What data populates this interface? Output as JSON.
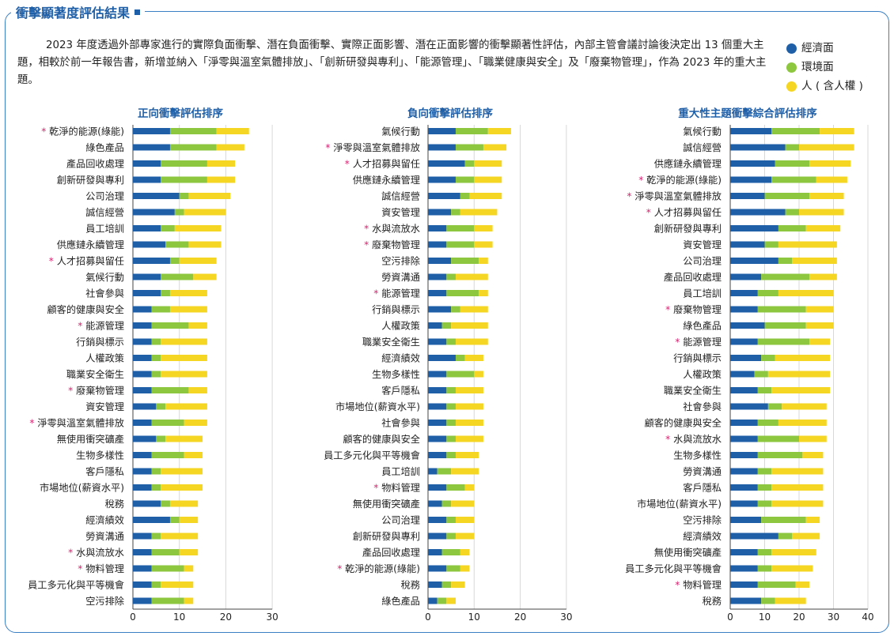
{
  "page": {
    "title": "衝擊顯著度評估結果",
    "intro": "2023 年度透過外部專家進行的實際負面衝擊、潛在負面衝擊、實際正面影響、潛在正面影響的衝擊顯著性評估，內部主管會議討論後決定出 13 個重大主題，相較於前一年報告書，新增並納入「淨零與溫室氣體排放」、「創新研發與專利」、「能源管理」、「職業健康與安全」及「廢棄物管理」，作為 2023 年的重大主題。",
    "legend": [
      {
        "label": "經濟面",
        "color": "#1f5fa8"
      },
      {
        "label": "環境面",
        "color": "#8dc63f"
      },
      {
        "label": "人 ( 含人權 )",
        "color": "#f5d623"
      }
    ],
    "marker": "*"
  },
  "chart_data": [
    {
      "type": "bar",
      "stacked": true,
      "orientation": "horizontal",
      "title": "正向衝擊評估排序",
      "xlim": [
        0,
        30
      ],
      "xticks": [
        0,
        10,
        20,
        30
      ],
      "series_names": [
        "經濟面",
        "環境面",
        "人 ( 含人權 )"
      ],
      "categories": [
        {
          "label": "乾淨的能源(綠能)",
          "star": true,
          "values": [
            8,
            10,
            7
          ]
        },
        {
          "label": "綠色產品",
          "star": false,
          "values": [
            8,
            10,
            6
          ]
        },
        {
          "label": "產品回收處理",
          "star": false,
          "values": [
            6,
            10,
            6
          ]
        },
        {
          "label": "創新研發與專利",
          "star": false,
          "values": [
            6,
            10,
            6
          ]
        },
        {
          "label": "公司治理",
          "star": false,
          "values": [
            10,
            2,
            9
          ]
        },
        {
          "label": "誠信經營",
          "star": false,
          "values": [
            9,
            2,
            9
          ]
        },
        {
          "label": "員工培訓",
          "star": false,
          "values": [
            6,
            3,
            10
          ]
        },
        {
          "label": "供應鏈永續管理",
          "star": false,
          "values": [
            7,
            5,
            7
          ]
        },
        {
          "label": "人才招募與留任",
          "star": true,
          "values": [
            8,
            2,
            8
          ]
        },
        {
          "label": "氣候行動",
          "star": false,
          "values": [
            6,
            7,
            5
          ]
        },
        {
          "label": "社會參與",
          "star": false,
          "values": [
            6,
            2,
            8
          ]
        },
        {
          "label": "顧客的健康與安全",
          "star": false,
          "values": [
            4,
            4,
            8
          ]
        },
        {
          "label": "能源管理",
          "star": true,
          "values": [
            4,
            8,
            4
          ]
        },
        {
          "label": "行銷與標示",
          "star": false,
          "values": [
            4,
            2,
            10
          ]
        },
        {
          "label": "人權政策",
          "star": false,
          "values": [
            4,
            2,
            10
          ]
        },
        {
          "label": "職業安全衛生",
          "star": false,
          "values": [
            4,
            2,
            10
          ]
        },
        {
          "label": "廢棄物管理",
          "star": true,
          "values": [
            4,
            8,
            4
          ]
        },
        {
          "label": "資安管理",
          "star": false,
          "values": [
            5,
            2,
            9
          ]
        },
        {
          "label": "淨零與溫室氣體排放",
          "star": true,
          "values": [
            4,
            7,
            5
          ]
        },
        {
          "label": "無使用衝突礦產",
          "star": false,
          "values": [
            5,
            2,
            8
          ]
        },
        {
          "label": "生物多樣性",
          "star": false,
          "values": [
            4,
            7,
            4
          ]
        },
        {
          "label": "客戶隱私",
          "star": false,
          "values": [
            4,
            2,
            9
          ]
        },
        {
          "label": "市場地位(薪資水平)",
          "star": false,
          "values": [
            4,
            2,
            9
          ]
        },
        {
          "label": "稅務",
          "star": false,
          "values": [
            6,
            2,
            6
          ]
        },
        {
          "label": "經濟績效",
          "star": false,
          "values": [
            8,
            2,
            4
          ]
        },
        {
          "label": "勞資溝通",
          "star": false,
          "values": [
            4,
            2,
            8
          ]
        },
        {
          "label": "水與流放水",
          "star": true,
          "values": [
            4,
            6,
            4
          ]
        },
        {
          "label": "物料管理",
          "star": true,
          "values": [
            4,
            7,
            2
          ]
        },
        {
          "label": "員工多元化與平等機會",
          "star": false,
          "values": [
            4,
            2,
            7
          ]
        },
        {
          "label": "空污排除",
          "star": false,
          "values": [
            4,
            7,
            2
          ]
        }
      ]
    },
    {
      "type": "bar",
      "stacked": true,
      "orientation": "horizontal",
      "title": "負向衝擊評估排序",
      "xlim": [
        0,
        30
      ],
      "xticks": [
        0,
        10,
        20,
        30
      ],
      "series_names": [
        "經濟面",
        "環境面",
        "人 ( 含人權 )"
      ],
      "categories": [
        {
          "label": "氣候行動",
          "star": false,
          "values": [
            6,
            7,
            5
          ]
        },
        {
          "label": "淨零與溫室氣體排放",
          "star": true,
          "values": [
            6,
            6,
            5
          ]
        },
        {
          "label": "人才招募與留任",
          "star": true,
          "values": [
            8,
            2,
            6
          ]
        },
        {
          "label": "供應鏈永續管理",
          "star": false,
          "values": [
            6,
            4,
            6
          ]
        },
        {
          "label": "誠信經營",
          "star": false,
          "values": [
            7,
            2,
            7
          ]
        },
        {
          "label": "資安管理",
          "star": false,
          "values": [
            5,
            2,
            8
          ]
        },
        {
          "label": "水與流放水",
          "star": true,
          "values": [
            4,
            6,
            4
          ]
        },
        {
          "label": "廢棄物管理",
          "star": true,
          "values": [
            4,
            6,
            4
          ]
        },
        {
          "label": "空污排除",
          "star": false,
          "values": [
            5,
            6,
            2
          ]
        },
        {
          "label": "勞資溝通",
          "star": false,
          "values": [
            4,
            2,
            7
          ]
        },
        {
          "label": "能源管理",
          "star": true,
          "values": [
            4,
            7,
            2
          ]
        },
        {
          "label": "行銷與標示",
          "star": false,
          "values": [
            5,
            2,
            6
          ]
        },
        {
          "label": "人權政策",
          "star": false,
          "values": [
            3,
            2,
            8
          ]
        },
        {
          "label": "職業安全衛生",
          "star": false,
          "values": [
            4,
            2,
            7
          ]
        },
        {
          "label": "經濟績效",
          "star": false,
          "values": [
            6,
            2,
            4
          ]
        },
        {
          "label": "生物多樣性",
          "star": false,
          "values": [
            4,
            6,
            2
          ]
        },
        {
          "label": "客戶隱私",
          "star": false,
          "values": [
            4,
            2,
            6
          ]
        },
        {
          "label": "市場地位(薪資水平)",
          "star": false,
          "values": [
            4,
            2,
            6
          ]
        },
        {
          "label": "社會參與",
          "star": false,
          "values": [
            4,
            2,
            6
          ]
        },
        {
          "label": "顧客的健康與安全",
          "star": false,
          "values": [
            4,
            2,
            6
          ]
        },
        {
          "label": "員工多元化與平等機會",
          "star": false,
          "values": [
            4,
            2,
            5
          ]
        },
        {
          "label": "員工培訓",
          "star": false,
          "values": [
            2,
            3,
            6
          ]
        },
        {
          "label": "物料管理",
          "star": true,
          "values": [
            4,
            4,
            2
          ]
        },
        {
          "label": "無使用衝突礦產",
          "star": false,
          "values": [
            3,
            2,
            5
          ]
        },
        {
          "label": "公司治理",
          "star": false,
          "values": [
            4,
            2,
            4
          ]
        },
        {
          "label": "創新研發與專利",
          "star": false,
          "values": [
            4,
            2,
            4
          ]
        },
        {
          "label": "產品回收處理",
          "star": false,
          "values": [
            3,
            4,
            2
          ]
        },
        {
          "label": "乾淨的能源(綠能)",
          "star": true,
          "values": [
            4,
            3,
            2
          ]
        },
        {
          "label": "稅務",
          "star": false,
          "values": [
            3,
            2,
            3
          ]
        },
        {
          "label": "綠色產品",
          "star": false,
          "values": [
            2,
            2,
            2
          ]
        }
      ]
    },
    {
      "type": "bar",
      "stacked": true,
      "orientation": "horizontal",
      "title": "重大性主題衝擊綜合評估排序",
      "xlim": [
        0,
        40
      ],
      "xticks": [
        0,
        10,
        20,
        30,
        40
      ],
      "series_names": [
        "經濟面",
        "環境面",
        "人 ( 含人權 )"
      ],
      "categories": [
        {
          "label": "氣候行動",
          "star": false,
          "values": [
            12,
            14,
            10
          ]
        },
        {
          "label": "誠信經營",
          "star": false,
          "values": [
            16,
            4,
            16
          ]
        },
        {
          "label": "供應鏈永續管理",
          "star": false,
          "values": [
            13,
            10,
            12
          ]
        },
        {
          "label": "乾淨的能源(綠能)",
          "star": true,
          "values": [
            12,
            13,
            9
          ]
        },
        {
          "label": "淨零與溫室氣體排放",
          "star": true,
          "values": [
            10,
            13,
            10
          ]
        },
        {
          "label": "人才招募與留任",
          "star": true,
          "values": [
            16,
            4,
            13
          ]
        },
        {
          "label": "創新研發與專利",
          "star": false,
          "values": [
            14,
            8,
            10
          ]
        },
        {
          "label": "資安管理",
          "star": false,
          "values": [
            10,
            4,
            17
          ]
        },
        {
          "label": "公司治理",
          "star": false,
          "values": [
            14,
            4,
            13
          ]
        },
        {
          "label": "產品回收處理",
          "star": false,
          "values": [
            9,
            14,
            8
          ]
        },
        {
          "label": "員工培訓",
          "star": false,
          "values": [
            8,
            6,
            16
          ]
        },
        {
          "label": "廢棄物管理",
          "star": true,
          "values": [
            8,
            14,
            8
          ]
        },
        {
          "label": "綠色產品",
          "star": false,
          "values": [
            10,
            12,
            8
          ]
        },
        {
          "label": "能源管理",
          "star": true,
          "values": [
            8,
            15,
            6
          ]
        },
        {
          "label": "行銷與標示",
          "star": false,
          "values": [
            9,
            4,
            16
          ]
        },
        {
          "label": "人權政策",
          "star": false,
          "values": [
            7,
            4,
            18
          ]
        },
        {
          "label": "職業安全衛生",
          "star": false,
          "values": [
            8,
            4,
            17
          ]
        },
        {
          "label": "社會參與",
          "star": false,
          "values": [
            11,
            4,
            13
          ]
        },
        {
          "label": "顧客的健康與安全",
          "star": false,
          "values": [
            8,
            6,
            14
          ]
        },
        {
          "label": "水與流放水",
          "star": true,
          "values": [
            8,
            12,
            8
          ]
        },
        {
          "label": "生物多樣性",
          "star": false,
          "values": [
            8,
            13,
            6
          ]
        },
        {
          "label": "勞資溝通",
          "star": false,
          "values": [
            8,
            4,
            15
          ]
        },
        {
          "label": "客戶隱私",
          "star": false,
          "values": [
            8,
            4,
            15
          ]
        },
        {
          "label": "市場地位(薪資水平)",
          "star": false,
          "values": [
            8,
            4,
            15
          ]
        },
        {
          "label": "空污排除",
          "star": false,
          "values": [
            9,
            13,
            4
          ]
        },
        {
          "label": "經濟績效",
          "star": false,
          "values": [
            14,
            4,
            8
          ]
        },
        {
          "label": "無使用衝突礦產",
          "star": false,
          "values": [
            8,
            4,
            13
          ]
        },
        {
          "label": "員工多元化與平等機會",
          "star": false,
          "values": [
            8,
            4,
            12
          ]
        },
        {
          "label": "物料管理",
          "star": true,
          "values": [
            8,
            11,
            4
          ]
        },
        {
          "label": "稅務",
          "star": false,
          "values": [
            9,
            4,
            9
          ]
        }
      ]
    }
  ]
}
